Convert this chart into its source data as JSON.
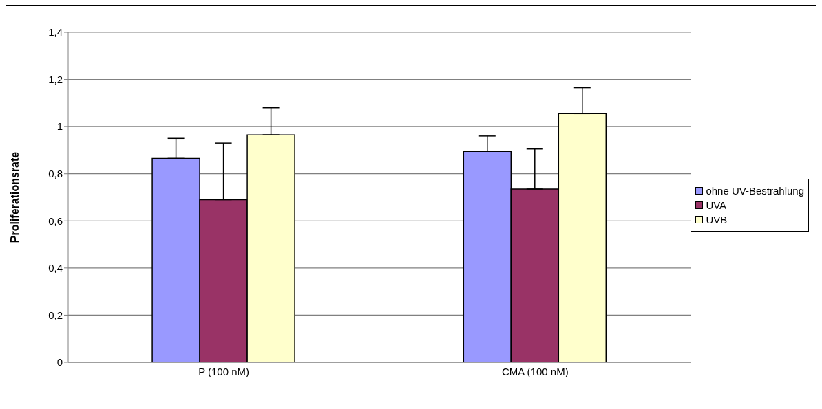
{
  "chart_data": {
    "type": "bar",
    "ylabel": "Proliferationsrate",
    "categories": [
      "P (100 nM)",
      "CMA (100 nM)"
    ],
    "series": [
      {
        "name": "ohne UV-Bestrahlung",
        "color": "#9999ff",
        "values": [
          0.865,
          0.895
        ],
        "errors": [
          [
            0.865,
            0.95
          ],
          [
            0.895,
            0.96
          ]
        ]
      },
      {
        "name": "UVA",
        "color": "#993366",
        "values": [
          0.69,
          0.735
        ],
        "errors": [
          [
            0.69,
            0.93
          ],
          [
            0.735,
            0.905
          ]
        ]
      },
      {
        "name": "UVB",
        "color": "#ffffcc",
        "values": [
          0.965,
          1.055
        ],
        "errors": [
          [
            0.965,
            1.08
          ],
          [
            1.055,
            1.165
          ]
        ]
      }
    ],
    "ylim": [
      0,
      1.4
    ],
    "yticks": [
      0,
      {
        "value": 0.2,
        "label": "0,2"
      },
      {
        "value": 0.4,
        "label": "0,4"
      },
      {
        "value": 0.6,
        "label": "0,6"
      },
      {
        "value": 0.8,
        "label": "0,8"
      },
      1,
      {
        "value": 1.2,
        "label": "1,2"
      },
      {
        "value": 1.4,
        "label": "1,4"
      }
    ],
    "grid": "y",
    "legend": "right"
  }
}
